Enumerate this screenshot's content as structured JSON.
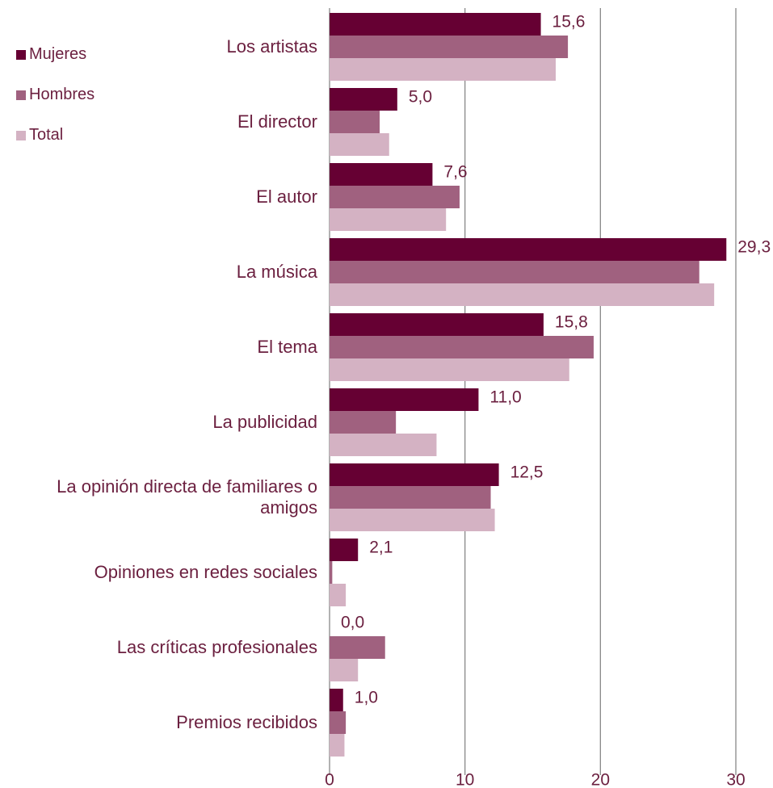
{
  "chart_data": {
    "type": "bar",
    "orientation": "horizontal",
    "categories": [
      "Los artistas",
      "El director",
      "El autor",
      "La música",
      "El tema",
      "La publicidad",
      "La opinión directa de familiares o amigos",
      "Opiniones en redes sociales",
      "Las críticas profesionales",
      "Premios recibidos"
    ],
    "series": [
      {
        "name": "Mujeres",
        "color": "#660033",
        "values": [
          15.6,
          5.0,
          7.6,
          29.3,
          15.8,
          11.0,
          12.5,
          2.1,
          0.0,
          1.0
        ],
        "value_labels": [
          "15,6",
          "5,0",
          "7,6",
          "29,3",
          "15,8",
          "11,0",
          "12,5",
          "2,1",
          "0,0",
          "1,0"
        ]
      },
      {
        "name": "Hombres",
        "color": "#a0617f",
        "values": [
          17.6,
          3.7,
          9.6,
          27.3,
          19.5,
          4.9,
          11.9,
          0.2,
          4.1,
          1.2
        ]
      },
      {
        "name": "Total",
        "color": "#d4b2c3",
        "values": [
          16.7,
          4.4,
          8.6,
          28.4,
          17.7,
          7.9,
          12.2,
          1.2,
          2.1,
          1.1
        ]
      }
    ],
    "xlim": [
      0,
      30
    ],
    "xticks": [
      0,
      10,
      20,
      30
    ],
    "grid": true,
    "legend": "top-left"
  }
}
